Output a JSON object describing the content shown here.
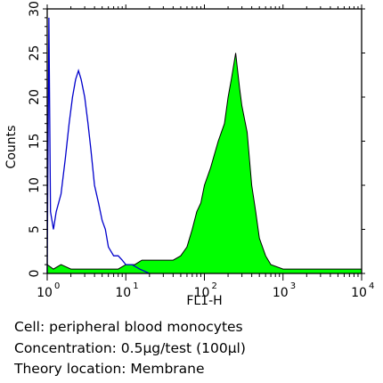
{
  "chart_data": {
    "type": "area",
    "title": "",
    "xlabel": "FL1-H",
    "ylabel": "Counts",
    "x_scale": "log",
    "xlim": [
      1,
      10000
    ],
    "ylim": [
      0,
      30
    ],
    "x_ticks": [
      {
        "base": "10",
        "exp": "0",
        "value": 1
      },
      {
        "base": "10",
        "exp": "1",
        "value": 10
      },
      {
        "base": "10",
        "exp": "2",
        "value": 100
      },
      {
        "base": "10",
        "exp": "3",
        "value": 1000
      },
      {
        "base": "10",
        "exp": "4",
        "value": 10000
      }
    ],
    "y_ticks": [
      "0",
      "5",
      "10",
      "15",
      "20",
      "25",
      "30"
    ],
    "grid": false,
    "series": [
      {
        "style": "filled",
        "color": "#00ff00",
        "outline": "#000000",
        "x": [
          1,
          1.2,
          1.5,
          2,
          3,
          5,
          8,
          10,
          13,
          16,
          20,
          25,
          30,
          40,
          50,
          60,
          70,
          80,
          90,
          100,
          120,
          150,
          180,
          200,
          220,
          250,
          280,
          300,
          350,
          400,
          450,
          500,
          600,
          700,
          1000,
          2000,
          5000,
          10000
        ],
        "y": [
          1,
          0.5,
          1,
          0.5,
          0.5,
          0.5,
          0.5,
          1,
          1,
          1.5,
          1.5,
          1.5,
          1.5,
          1.5,
          2,
          3,
          5,
          7,
          8,
          10,
          12,
          15,
          17,
          20,
          22,
          25,
          21,
          19,
          16,
          10,
          7,
          4,
          2,
          1,
          0.5,
          0.5,
          0.5,
          0.5
        ]
      },
      {
        "style": "line",
        "color": "#0000cc",
        "x": [
          1,
          1.05,
          1.1,
          1.2,
          1.3,
          1.5,
          1.7,
          1.9,
          2.1,
          2.3,
          2.5,
          2.7,
          3,
          3.3,
          3.6,
          4,
          4.5,
          5,
          5.5,
          6,
          7,
          8,
          9,
          10,
          12,
          15,
          20
        ],
        "y": [
          0,
          29,
          7,
          5,
          7,
          9,
          13,
          17,
          20,
          22,
          23,
          22,
          20,
          17,
          14,
          10,
          8,
          6,
          5,
          3,
          2,
          2,
          1.5,
          1,
          1,
          0.5,
          0
        ]
      }
    ]
  },
  "caption": {
    "lines": [
      "Cell: peripheral blood monocytes",
      "Concentration: 0.5μg/test (100μl)",
      "Theory location: Membrane"
    ]
  }
}
